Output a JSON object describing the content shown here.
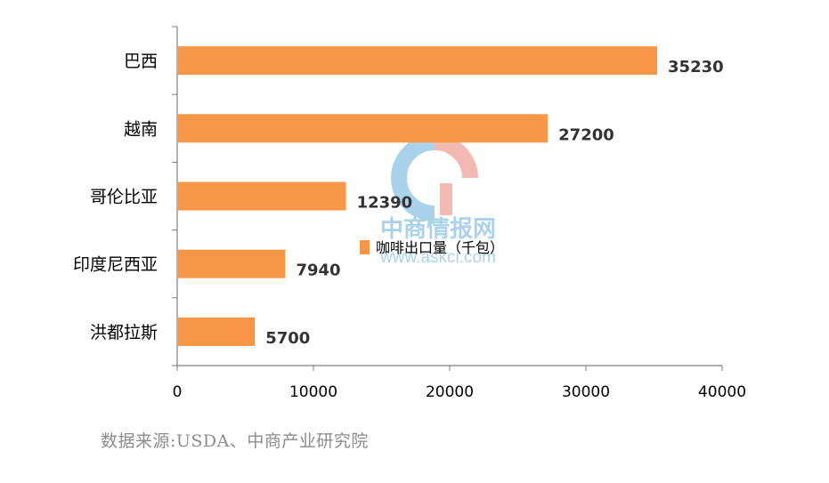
{
  "chart_data": {
    "type": "bar",
    "orientation": "horizontal",
    "categories": [
      "巴西",
      "越南",
      "哥伦比亚",
      "印度尼西亚",
      "洪都拉斯"
    ],
    "series": [
      {
        "name": "咖啡出口量（千包）",
        "values": [
          35230,
          27200,
          12390,
          7940,
          5700
        ],
        "color": "#f79646"
      }
    ],
    "data_labels": [
      "35230",
      "27200",
      "12390",
      "7940",
      "5700"
    ],
    "xlim": [
      0,
      40000
    ],
    "x_ticks": [
      0,
      10000,
      20000,
      30000,
      40000
    ],
    "x_tick_labels": [
      "0",
      "10000",
      "20000",
      "30000",
      "40000"
    ],
    "grid": false,
    "legend_position": "center-overlay",
    "bar_color": "#f79646"
  },
  "watermark": {
    "brand_cn": "中商情报网",
    "url": "www.askci.com",
    "colors": {
      "blue": "#5aa6d8",
      "red": "#e8776a"
    }
  },
  "source_note": "数据来源:USDA、中商产业研究院"
}
